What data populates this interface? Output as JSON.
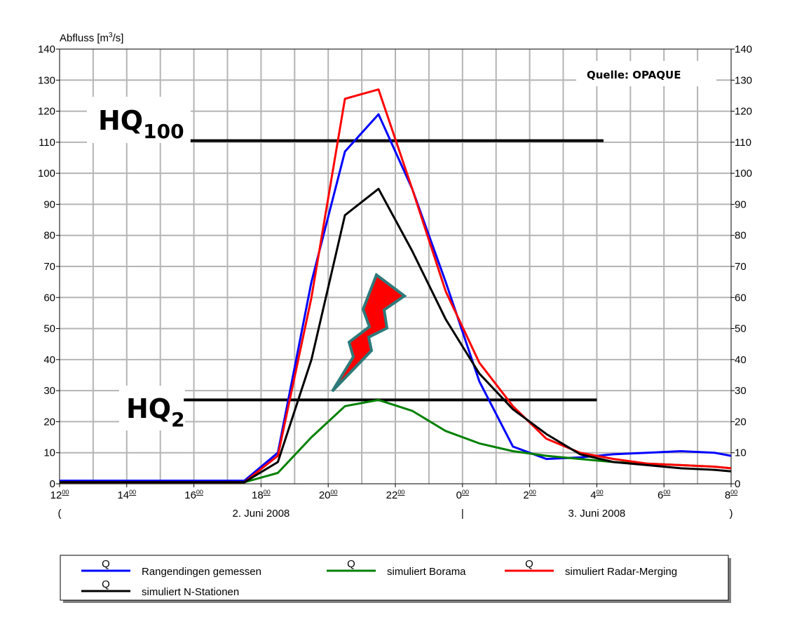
{
  "chart_data": {
    "type": "line",
    "ylabel": "Abfluss [m³/s]",
    "ylabel_main": "Abfluss [m",
    "ylabel_sup": "3",
    "ylabel_end": "/s]",
    "ylim": [
      0,
      140
    ],
    "yticks": [
      0,
      10,
      20,
      30,
      40,
      50,
      60,
      70,
      80,
      90,
      100,
      110,
      120,
      130,
      140
    ],
    "xlim": [
      12,
      32
    ],
    "xticks": [
      {
        "x": 12,
        "h": "12",
        "m": "00"
      },
      {
        "x": 14,
        "h": "14",
        "m": "00"
      },
      {
        "x": 16,
        "h": "16",
        "m": "00"
      },
      {
        "x": 18,
        "h": "18",
        "m": "00"
      },
      {
        "x": 20,
        "h": "20",
        "m": "00"
      },
      {
        "x": 22,
        "h": "22",
        "m": "00"
      },
      {
        "x": 24,
        "h": "0",
        "m": "00"
      },
      {
        "x": 26,
        "h": "2",
        "m": "00"
      },
      {
        "x": 28,
        "h": "4",
        "m": "00"
      },
      {
        "x": 30,
        "h": "6",
        "m": "00"
      },
      {
        "x": 32,
        "h": "8",
        "m": "00"
      }
    ],
    "date_labels": [
      {
        "x": 12,
        "text": "("
      },
      {
        "x": 18,
        "text": "2. Juni 2008"
      },
      {
        "x": 24,
        "text": "|"
      },
      {
        "x": 28,
        "text": "3. Juni 2008"
      },
      {
        "x": 32,
        "text": ")"
      }
    ],
    "grid": true,
    "source_label": "Quelle: OPAQUE",
    "hlines": [
      {
        "label_main": "HQ",
        "label_sub": "100",
        "y": 110.5,
        "x_start": 15.9,
        "x_end": 28.2
      },
      {
        "label_main": "HQ",
        "label_sub": "2",
        "y": 27,
        "x_start": 15.7,
        "x_end": 28.0
      }
    ],
    "series": [
      {
        "name": "Rangendingen gemessen",
        "legend_tag": "Q",
        "color": "#0000ff",
        "x": [
          12,
          17.5,
          18.5,
          19.5,
          20.5,
          21.5,
          22.5,
          23.5,
          24.5,
          25.5,
          26.5,
          27.5,
          28.5,
          29.5,
          30.5,
          31.5,
          32
        ],
        "y": [
          1,
          1,
          10,
          65,
          107,
          119,
          95,
          65,
          33,
          12,
          8,
          8.5,
          9.5,
          10,
          10.5,
          10,
          9
        ]
      },
      {
        "name": "simuliert Borama",
        "legend_tag": "Q",
        "color": "#008000",
        "x": [
          12,
          17.5,
          18.5,
          19.5,
          20.5,
          21.5,
          22.5,
          23.5,
          24.5,
          25.5,
          26.5,
          27.5,
          28.5,
          29.5,
          30.5,
          31.5,
          32
        ],
        "y": [
          0.5,
          0.5,
          3.5,
          15,
          25,
          27,
          23.5,
          17,
          13,
          10.5,
          9,
          8,
          7,
          6.5,
          6,
          5.5,
          5
        ]
      },
      {
        "name": "simuliert Radar-Merging",
        "legend_tag": "Q",
        "color": "#ff0000",
        "x": [
          12,
          17.5,
          18.5,
          19.5,
          20.5,
          21.5,
          22.5,
          23.5,
          24.5,
          25.5,
          26.5,
          27.5,
          28.5,
          29.5,
          30.5,
          31.5,
          32
        ],
        "y": [
          0.5,
          0.5,
          9,
          60,
          124,
          127,
          95,
          62,
          39,
          25,
          14.5,
          10,
          8,
          6.5,
          6,
          5.5,
          5
        ]
      },
      {
        "name": "simuliert N-Stationen",
        "legend_tag": "Q",
        "color": "#000000",
        "x": [
          12,
          17.5,
          18.5,
          19.5,
          20.5,
          21.5,
          22.5,
          23.5,
          24.5,
          25.5,
          26.5,
          27.5,
          28.5,
          29.5,
          30.5,
          31.5,
          32
        ],
        "y": [
          0.5,
          0.5,
          7,
          40,
          86.5,
          95,
          75,
          53,
          35.5,
          24,
          16,
          9.5,
          7,
          6,
          5,
          4.5,
          4
        ]
      }
    ]
  }
}
